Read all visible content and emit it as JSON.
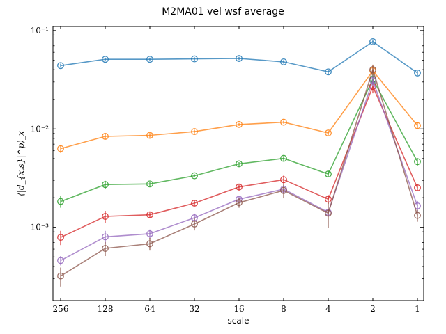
{
  "chart_data": {
    "type": "line",
    "title": "M2MA01 vel wsf average",
    "xlabel": "scale",
    "ylabel": "⟨|d_{x,s}|^p⟩_x",
    "yscale": "log",
    "ylim": [
      0.00018,
      0.11
    ],
    "x_direction": "decreasing",
    "categories": [
      "256",
      "128",
      "64",
      "32",
      "16",
      "8",
      "4",
      "2",
      "1"
    ],
    "yticks": [
      {
        "value": 0.1,
        "label": "10⁻¹"
      },
      {
        "value": 0.01,
        "label": "10⁻²"
      },
      {
        "value": 0.001,
        "label": "10⁻³"
      }
    ],
    "grid": false,
    "legend": "none",
    "series": [
      {
        "color": "#1f77b4",
        "values": [
          0.044,
          0.051,
          0.051,
          0.0515,
          0.052,
          0.048,
          0.038,
          0.077,
          0.037
        ],
        "errors": [
          0.002,
          0.002,
          0.002,
          0.002,
          0.002,
          0.002,
          0.002,
          0.004,
          0.002
        ]
      },
      {
        "color": "#ff7f0e",
        "values": [
          0.0063,
          0.0084,
          0.0086,
          0.0094,
          0.0111,
          0.0117,
          0.0091,
          0.039,
          0.0108
        ],
        "errors": [
          0.0006,
          0.0006,
          0.0005,
          0.0004,
          0.0004,
          0.0004,
          0.0005,
          0.005,
          0.0009
        ]
      },
      {
        "color": "#2ca02c",
        "values": [
          0.00183,
          0.00272,
          0.00276,
          0.00334,
          0.00442,
          0.00502,
          0.00348,
          0.032,
          0.00465
        ],
        "errors": [
          0.00025,
          0.00025,
          0.00012,
          0.00012,
          0.00018,
          0.00028,
          0.00025,
          0.004,
          0.0004
        ]
      },
      {
        "color": "#d62728",
        "values": [
          0.00079,
          0.00129,
          0.00134,
          0.00176,
          0.00257,
          0.00305,
          0.00193,
          0.027,
          0.00252
        ],
        "errors": [
          0.00013,
          0.00018,
          0.0001,
          0.00012,
          0.0002,
          0.0003,
          0.0002,
          0.004,
          0.0002
        ]
      },
      {
        "color": "#9467bd",
        "values": [
          0.00046,
          0.0008,
          0.00086,
          0.00125,
          0.00193,
          0.00244,
          0.00142,
          0.031,
          0.00165
        ],
        "errors": [
          5e-05,
          0.00012,
          9e-05,
          0.00013,
          0.00015,
          0.00025,
          0.0001,
          0.004,
          0.0002
        ]
      },
      {
        "color": "#8c564b",
        "values": [
          0.00032,
          0.00061,
          0.00068,
          0.00108,
          0.00178,
          0.00237,
          0.00139,
          0.04,
          0.00132
        ],
        "errors": [
          7e-05,
          0.0001,
          0.0001,
          0.00015,
          0.0002,
          0.0004,
          0.0004,
          0.005,
          0.00018
        ]
      }
    ]
  }
}
